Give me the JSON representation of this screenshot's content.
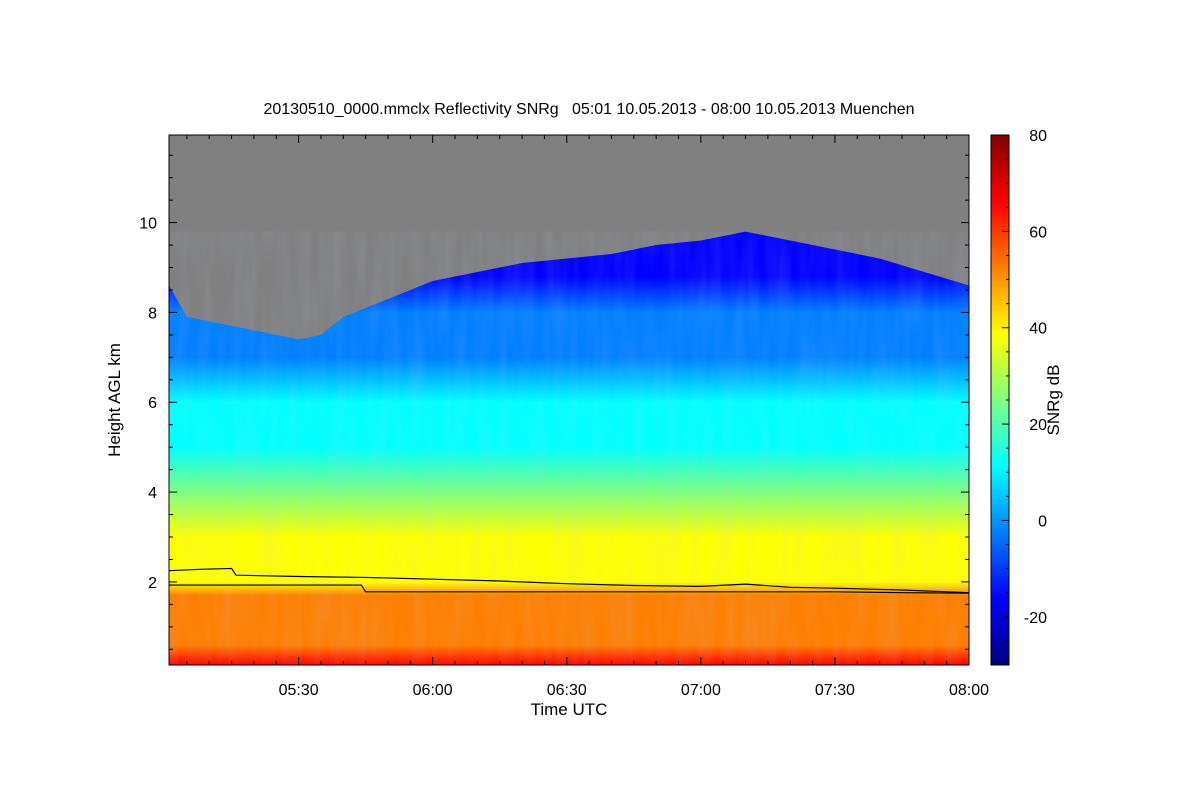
{
  "chart_data": {
    "type": "heatmap",
    "title": "20130510_0000.mmclx Reflectivity SNRg   05:01 10.05.2013 - 08:00 10.05.2013 Muenchen",
    "xlabel": "Time UTC",
    "ylabel": "Height AGL km",
    "xlim": [
      "05:01",
      "08:00"
    ],
    "ylim": [
      0.15,
      11.95
    ],
    "x_ticks": [
      "05:30",
      "06:00",
      "06:30",
      "07:00",
      "07:30",
      "08:00"
    ],
    "y_ticks": [
      2,
      4,
      6,
      8,
      10
    ],
    "colorbar": {
      "label": "SNRg dB",
      "range": [
        -30,
        80
      ],
      "ticks": [
        -20,
        0,
        20,
        40,
        60,
        80
      ],
      "colors": [
        "#00007f",
        "#0000ff",
        "#007fff",
        "#00ffff",
        "#7fff7f",
        "#ffff00",
        "#ff7f00",
        "#ff0000",
        "#7f0000"
      ]
    },
    "no_signal_color": "#808080",
    "echo_top_km": [
      {
        "time": "05:01",
        "height": 8.6
      },
      {
        "time": "05:05",
        "height": 7.9
      },
      {
        "time": "05:10",
        "height": 7.8
      },
      {
        "time": "05:20",
        "height": 7.6
      },
      {
        "time": "05:30",
        "height": 7.4
      },
      {
        "time": "05:35",
        "height": 7.5
      },
      {
        "time": "05:40",
        "height": 7.9
      },
      {
        "time": "05:45",
        "height": 8.1
      },
      {
        "time": "05:50",
        "height": 8.3
      },
      {
        "time": "06:00",
        "height": 8.7
      },
      {
        "time": "06:10",
        "height": 8.9
      },
      {
        "time": "06:20",
        "height": 9.1
      },
      {
        "time": "06:30",
        "height": 9.2
      },
      {
        "time": "06:40",
        "height": 9.3
      },
      {
        "time": "06:50",
        "height": 9.5
      },
      {
        "time": "07:00",
        "height": 9.6
      },
      {
        "time": "07:10",
        "height": 9.8
      },
      {
        "time": "07:20",
        "height": 9.6
      },
      {
        "time": "07:30",
        "height": 9.4
      },
      {
        "time": "07:40",
        "height": 9.2
      },
      {
        "time": "07:50",
        "height": 8.9
      },
      {
        "time": "08:00",
        "height": 8.6
      }
    ],
    "series": [
      {
        "points": [
          {
            "time": "05:01",
            "height": 2.25
          },
          {
            "time": "05:08",
            "height": 2.28
          },
          {
            "time": "05:15",
            "height": 2.3
          },
          {
            "time": "05:16",
            "height": 2.15
          },
          {
            "time": "05:30",
            "height": 2.12
          },
          {
            "time": "05:45",
            "height": 2.1
          },
          {
            "time": "06:00",
            "height": 2.06
          },
          {
            "time": "06:15",
            "height": 2.02
          },
          {
            "time": "06:30",
            "height": 1.96
          },
          {
            "time": "06:45",
            "height": 1.92
          },
          {
            "time": "07:00",
            "height": 1.9
          },
          {
            "time": "07:10",
            "height": 1.95
          },
          {
            "time": "07:20",
            "height": 1.88
          },
          {
            "time": "07:30",
            "height": 1.86
          },
          {
            "time": "07:45",
            "height": 1.82
          },
          {
            "time": "08:00",
            "height": 1.76
          }
        ]
      },
      {
        "points": [
          {
            "time": "05:01",
            "height": 1.93
          },
          {
            "time": "05:44",
            "height": 1.93
          },
          {
            "time": "05:45",
            "height": 1.78
          },
          {
            "time": "07:30",
            "height": 1.78
          },
          {
            "time": "07:45",
            "height": 1.76
          },
          {
            "time": "08:00",
            "height": 1.75
          }
        ]
      }
    ]
  }
}
